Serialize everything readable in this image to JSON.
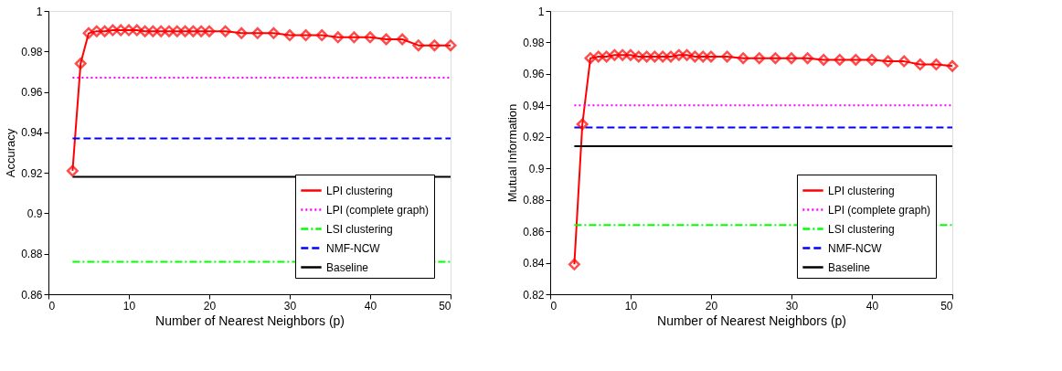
{
  "chart_data": [
    {
      "type": "line",
      "xlabel": "Number of Nearest Neighbors (p)",
      "ylabel": "Accuracy",
      "xlim": [
        0,
        50
      ],
      "xticks": [
        0,
        10,
        20,
        30,
        40,
        50
      ],
      "ylim": [
        0.86,
        1
      ],
      "yticks": [
        0.86,
        0.88,
        0.9,
        0.92,
        0.94,
        0.96,
        0.98,
        1
      ],
      "grid": false,
      "legend": "bottom right",
      "series": [
        {
          "name": "LPI clustering",
          "color": "#ff0000",
          "marker": "diamond",
          "line_style": "solid",
          "x": [
            3,
            4,
            5,
            6,
            7,
            8,
            9,
            10,
            11,
            12,
            13,
            14,
            15,
            16,
            17,
            18,
            19,
            20,
            22,
            24,
            26,
            28,
            30,
            32,
            34,
            36,
            38,
            40,
            42,
            44,
            46,
            48,
            50
          ],
          "values": [
            0.921,
            0.974,
            0.989,
            0.99,
            0.99,
            0.9905,
            0.9905,
            0.9905,
            0.9905,
            0.99,
            0.99,
            0.99,
            0.99,
            0.99,
            0.99,
            0.99,
            0.99,
            0.99,
            0.99,
            0.989,
            0.989,
            0.989,
            0.988,
            0.988,
            0.988,
            0.987,
            0.987,
            0.987,
            0.986,
            0.986,
            0.983,
            0.983,
            0.983
          ]
        },
        {
          "name": "LPI (complete graph)",
          "color": "#ff00ff",
          "marker": "none",
          "line_style": "dotted",
          "x": [
            3,
            50
          ],
          "values": [
            0.967,
            0.967
          ]
        },
        {
          "name": "LSI clustering",
          "color": "#00ff00",
          "marker": "none",
          "line_style": "dashdot",
          "x": [
            3,
            50
          ],
          "values": [
            0.876,
            0.876
          ]
        },
        {
          "name": "NMF-NCW",
          "color": "#0000ff",
          "marker": "none",
          "line_style": "dashed",
          "x": [
            3,
            50
          ],
          "values": [
            0.937,
            0.937
          ]
        },
        {
          "name": "Baseline",
          "color": "#000000",
          "marker": "none",
          "line_style": "solid",
          "x": [
            3,
            50
          ],
          "values": [
            0.918,
            0.918
          ]
        }
      ]
    },
    {
      "type": "line",
      "xlabel": "Number of Nearest Neighbors (p)",
      "ylabel": "Mutual Information",
      "xlim": [
        0,
        50
      ],
      "xticks": [
        0,
        10,
        20,
        30,
        40,
        50
      ],
      "ylim": [
        0.82,
        1
      ],
      "yticks": [
        0.82,
        0.84,
        0.86,
        0.88,
        0.9,
        0.92,
        0.94,
        0.96,
        0.98,
        1
      ],
      "grid": false,
      "legend": "bottom right",
      "series": [
        {
          "name": "LPI clustering",
          "color": "#ff0000",
          "marker": "diamond",
          "line_style": "solid",
          "x": [
            3,
            4,
            5,
            6,
            7,
            8,
            9,
            10,
            11,
            12,
            13,
            14,
            15,
            16,
            17,
            18,
            19,
            20,
            22,
            24,
            26,
            28,
            30,
            32,
            34,
            36,
            38,
            40,
            42,
            44,
            46,
            48,
            50
          ],
          "values": [
            0.839,
            0.928,
            0.97,
            0.971,
            0.971,
            0.972,
            0.972,
            0.972,
            0.971,
            0.971,
            0.971,
            0.971,
            0.971,
            0.972,
            0.972,
            0.971,
            0.971,
            0.971,
            0.971,
            0.97,
            0.97,
            0.97,
            0.97,
            0.97,
            0.969,
            0.969,
            0.969,
            0.969,
            0.968,
            0.968,
            0.966,
            0.966,
            0.965
          ]
        },
        {
          "name": "LPI (complete graph)",
          "color": "#ff00ff",
          "marker": "none",
          "line_style": "dotted",
          "x": [
            3,
            50
          ],
          "values": [
            0.94,
            0.94
          ]
        },
        {
          "name": "LSI clustering",
          "color": "#00ff00",
          "marker": "none",
          "line_style": "dashdot",
          "x": [
            3,
            50
          ],
          "values": [
            0.864,
            0.864
          ]
        },
        {
          "name": "NMF-NCW",
          "color": "#0000ff",
          "marker": "none",
          "line_style": "dashed",
          "x": [
            3,
            50
          ],
          "values": [
            0.926,
            0.926
          ]
        },
        {
          "name": "Baseline",
          "color": "#000000",
          "marker": "none",
          "line_style": "solid",
          "x": [
            3,
            50
          ],
          "values": [
            0.914,
            0.914
          ]
        }
      ]
    }
  ]
}
